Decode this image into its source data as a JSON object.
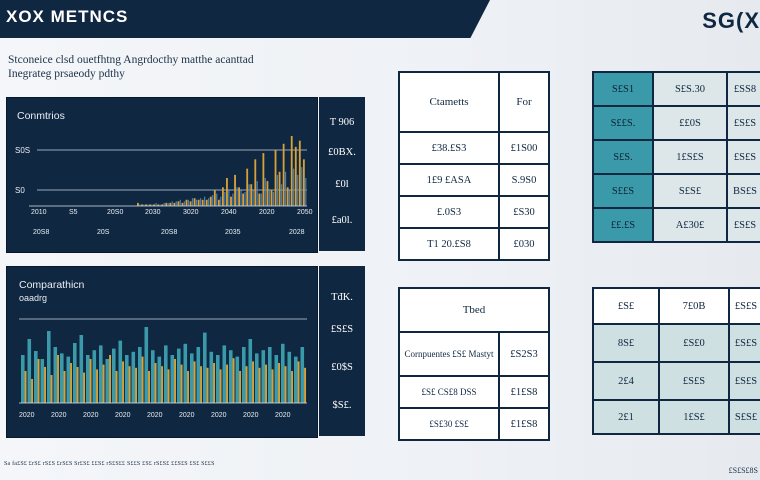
{
  "header": {
    "title": "XOX METNCS",
    "logo": "SG(X"
  },
  "subtitle": {
    "line1": "Stconeice clsd ouetfhtng Angrdocthy  matthe acanttad",
    "line2": "Inegrateg prsaeody pdthy"
  },
  "colors": {
    "navy": "#0f2740",
    "gold": "#d6a13a",
    "teal": "#3b9aaa"
  },
  "chart_data": [
    {
      "type": "bar",
      "title": "Conmtrios",
      "gridline_labels": [
        "S0S",
        "S0"
      ],
      "x_tick_labels": [
        "2010",
        "S5",
        "20S0",
        "2030",
        "3020",
        "2040",
        "2020",
        "2050"
      ],
      "bottom_labels": [
        "20S8",
        "20S",
        "20S8",
        "2035",
        "2028"
      ],
      "series": [
        {
          "name": "gold",
          "values": [
            2,
            1,
            1,
            1,
            1,
            1,
            1,
            2,
            2,
            2,
            3,
            2,
            4,
            3,
            5,
            4,
            4,
            4,
            6,
            10,
            4,
            12,
            18,
            6,
            20,
            12,
            8,
            24,
            14,
            30,
            8,
            34,
            16,
            10,
            36,
            22,
            40,
            12,
            45,
            38,
            42,
            30
          ]
        },
        {
          "name": "blue",
          "values": [
            1,
            1,
            1,
            1,
            2,
            1,
            2,
            2,
            3,
            3,
            4,
            3,
            4,
            5,
            4,
            5,
            6,
            5,
            7,
            8,
            6,
            9,
            10,
            8,
            12,
            10,
            9,
            14,
            10,
            16,
            8,
            18,
            11,
            9,
            20,
            14,
            22,
            10,
            24,
            20,
            25,
            18
          ]
        }
      ],
      "side_values": [
        "T 906",
        "£0BX.",
        "£0l",
        "£a0l."
      ]
    },
    {
      "type": "bar",
      "title": "Comparathicn",
      "subtitle": "oaadrg",
      "x_tick_labels": [
        "2020",
        "2020",
        "2020",
        "2020",
        "2020",
        "2020",
        "2020",
        "2020",
        "2020"
      ],
      "series": [
        {
          "name": "teal",
          "values": [
            60,
            80,
            65,
            55,
            90,
            70,
            62,
            58,
            75,
            85,
            60,
            66,
            72,
            55,
            68,
            78,
            60,
            64,
            70,
            95,
            66,
            58,
            72,
            60,
            68,
            74,
            62,
            70,
            88,
            64,
            60,
            72,
            66,
            58,
            70,
            80,
            62,
            66,
            70,
            60,
            74,
            64,
            58,
            70
          ]
        },
        {
          "name": "gold",
          "values": [
            40,
            30,
            55,
            45,
            35,
            60,
            40,
            50,
            45,
            38,
            55,
            42,
            48,
            60,
            40,
            52,
            46,
            44,
            58,
            40,
            50,
            46,
            42,
            55,
            48,
            40,
            52,
            46,
            44,
            50,
            42,
            48,
            56,
            40,
            46,
            52,
            44,
            48,
            42,
            50,
            46,
            40,
            52,
            44
          ]
        }
      ],
      "side_values": [
        "TđK.",
        "£S£S",
        "£0$S",
        "$S£."
      ]
    }
  ],
  "table_mid_top": {
    "headers": [
      "Ctametts",
      "For"
    ],
    "rows": [
      [
        "£38.£S3",
        "£1S00"
      ],
      [
        "1£9 £ASA",
        "S.9S0"
      ],
      [
        "£.0S3",
        "£S30"
      ],
      [
        "T1 20.£S8",
        "£030"
      ]
    ]
  },
  "table_mid_bottom": {
    "header": "Tbed",
    "rows": [
      [
        "Cornpuentes £S£ Mastyt",
        "£S2S3"
      ],
      [
        "£S£ CS£8 DSS",
        "£1£S8"
      ],
      [
        "£S£30 £S£",
        "£1£S8"
      ]
    ]
  },
  "table_right_top": {
    "rows": [
      [
        "S£S1",
        "S£S.30",
        "£SS8"
      ],
      [
        "S££S.",
        "££0S",
        "£S£S"
      ],
      [
        "S£S.",
        "1£S£S",
        "£S£S"
      ],
      [
        "S££S",
        "S£S£",
        "BS£S"
      ],
      [
        "££.£S",
        "A£30£",
        "£S£S"
      ]
    ]
  },
  "table_right_bottom": {
    "rows": [
      [
        "£S£",
        "7£0B",
        "£S£S"
      ],
      [
        "8S£",
        "£S£0",
        "£S£S"
      ],
      [
        "2£4",
        "£S£S",
        "£S£S"
      ],
      [
        "2£1",
        "1£S£",
        "S£S£"
      ]
    ]
  },
  "footnote": "Sa fa£S£ £rS£ rS£S £rS£S Sr£S£ ££S£ rS£S££ S££S £S£ rS£S£ ££S£S £S£ S££S",
  "footer_right": "£S£S£8S"
}
